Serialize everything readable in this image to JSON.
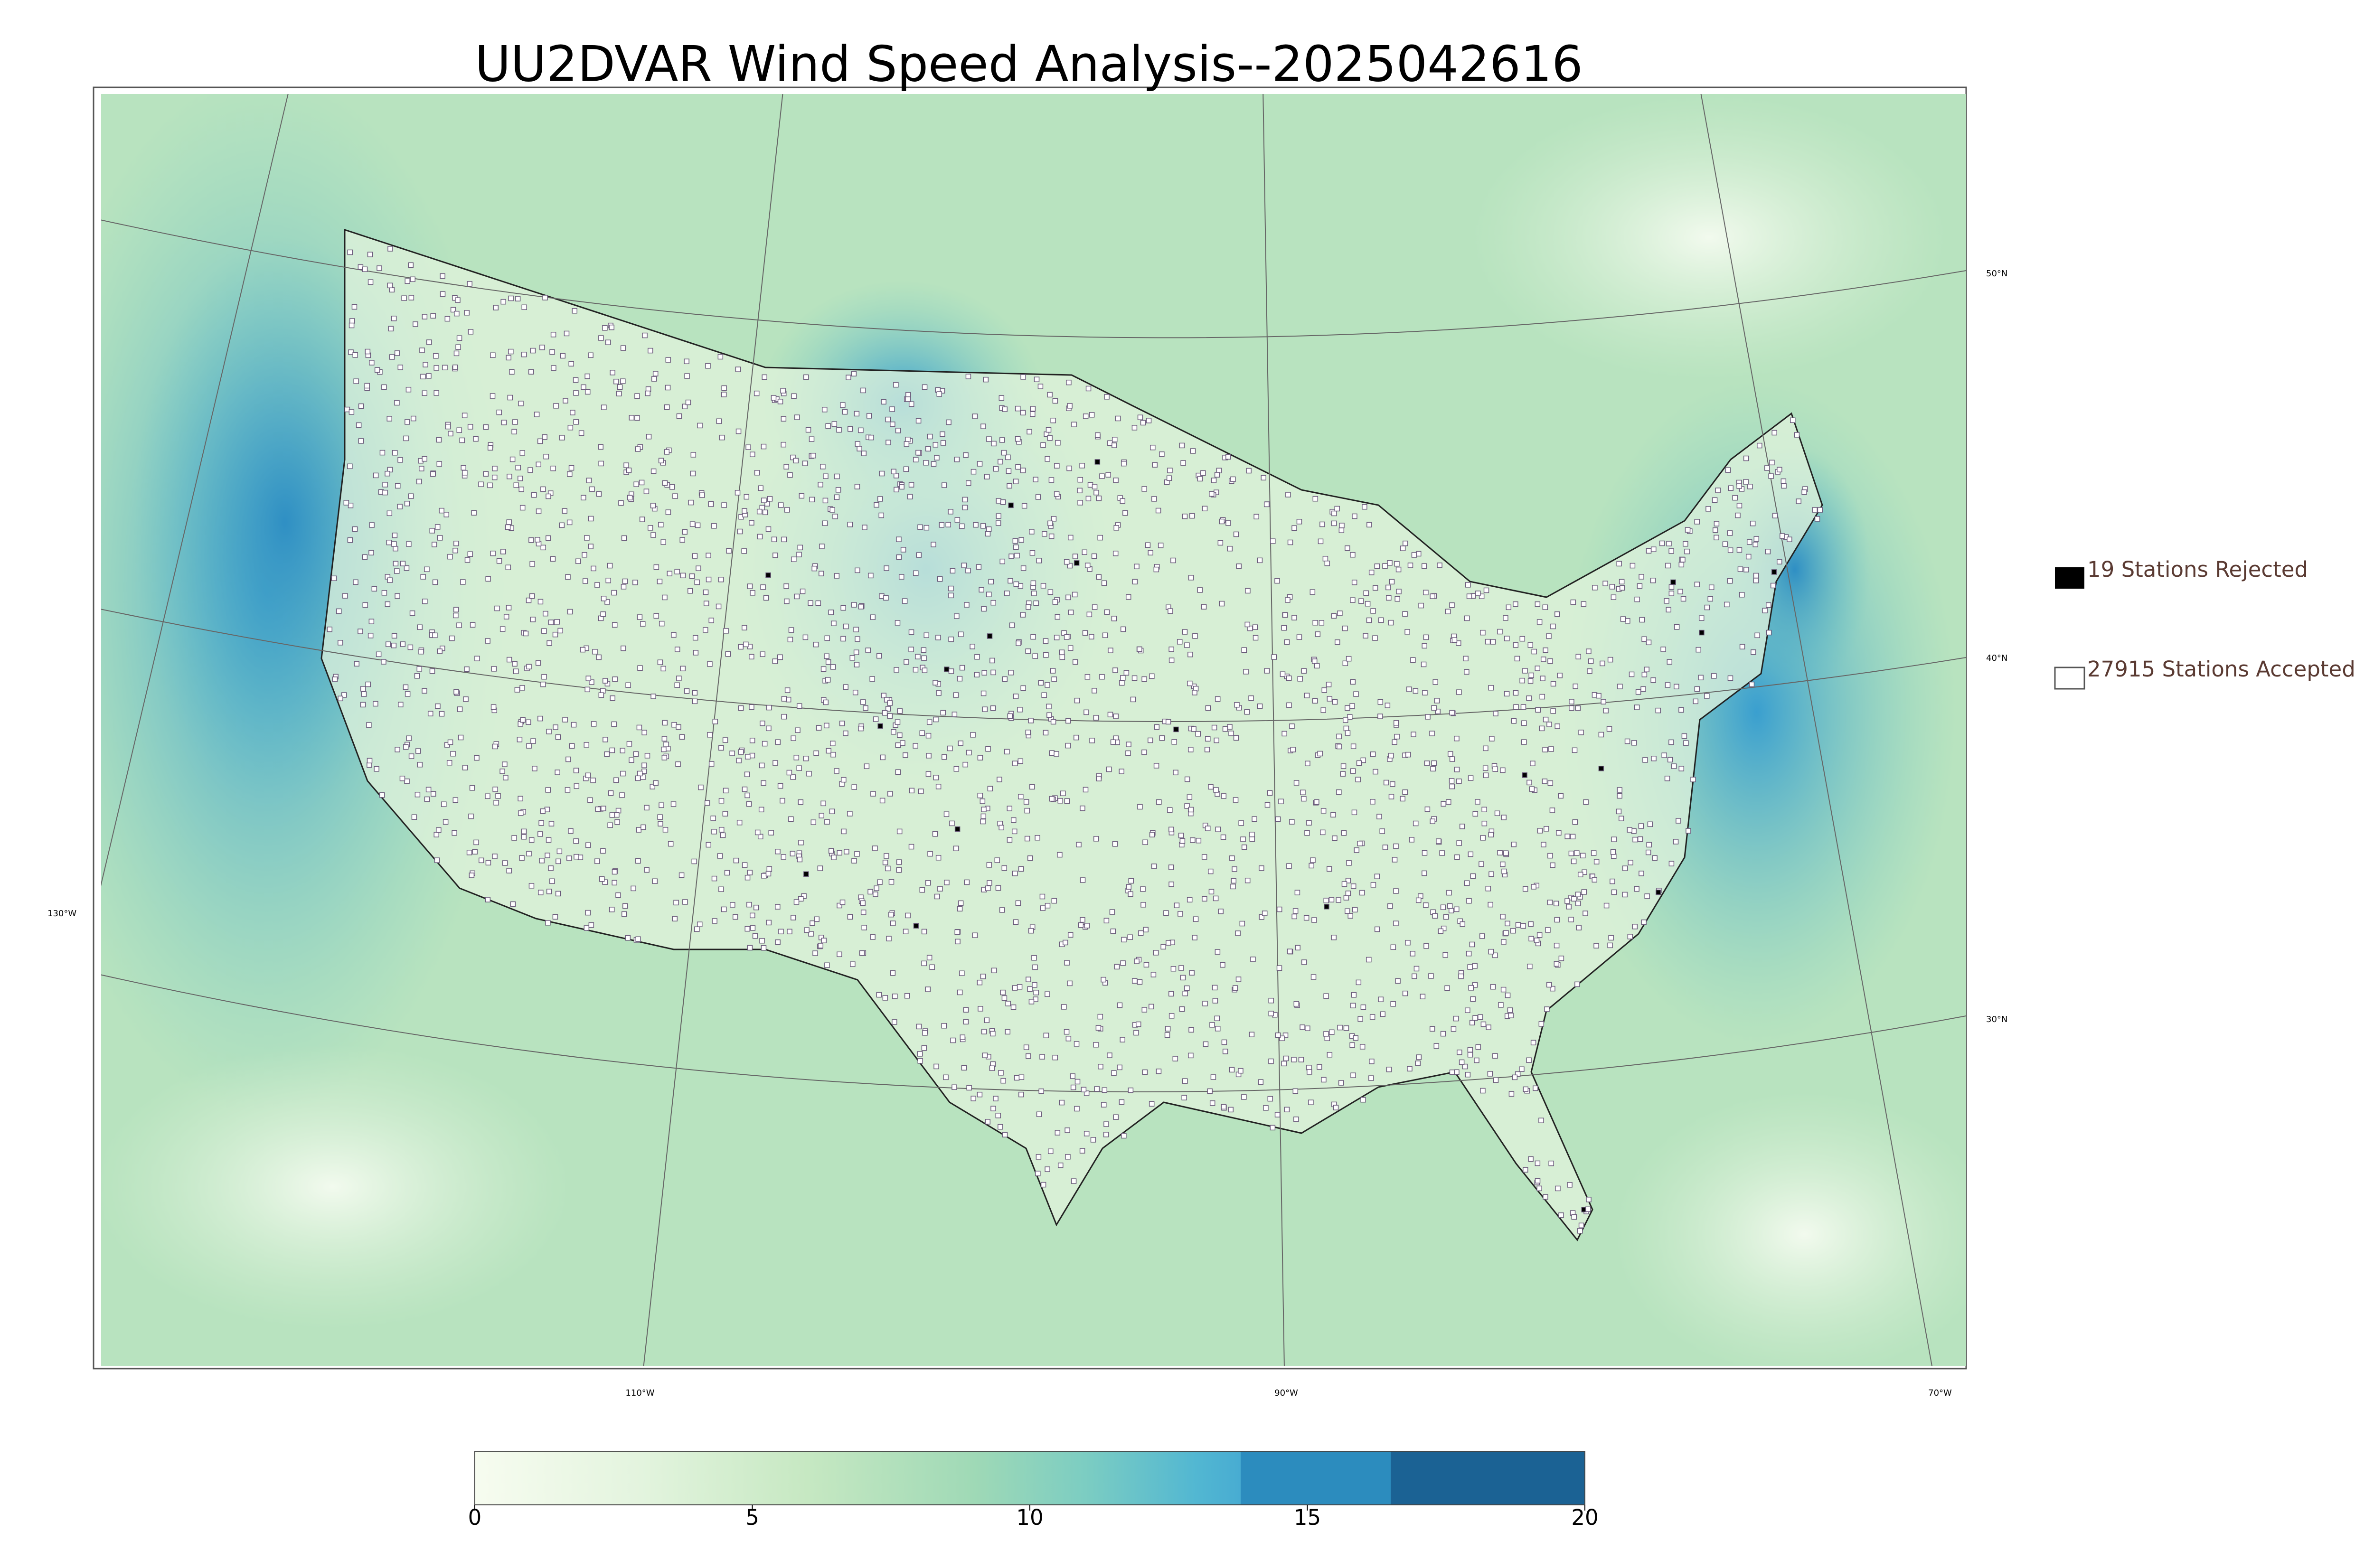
{
  "title": "UU2DVAR Wind Speed Analysis--2025042616",
  "legend": [
    {
      "label": "19 Stations Rejected"
    },
    {
      "label": "27915 Stations Accepted"
    }
  ],
  "colorbar": {
    "ticks": [
      0,
      5,
      10,
      15,
      20
    ]
  },
  "graticule": {
    "latitudes": [
      "50°N",
      "40°N",
      "30°N"
    ],
    "longitudes": [
      "130°W",
      "110°W",
      "90°W",
      "70°W"
    ]
  }
}
